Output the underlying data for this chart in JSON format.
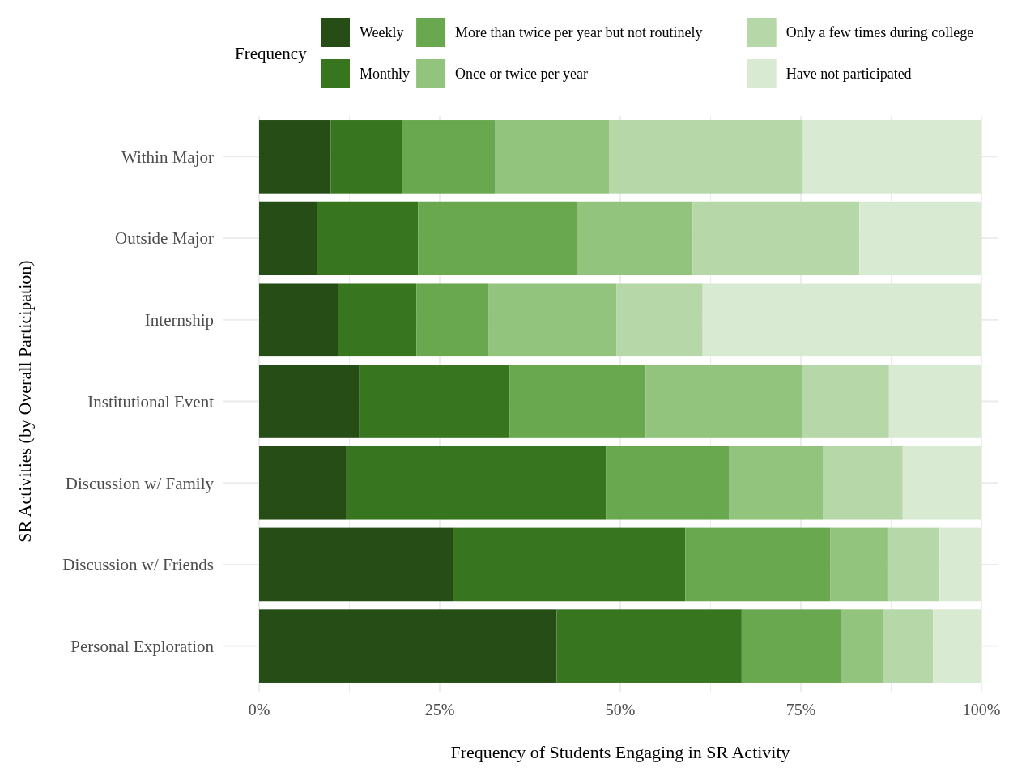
{
  "chart_data": {
    "type": "bar",
    "orientation": "horizontal",
    "stacked": true,
    "xlabel": "Frequency of Students Engaging in SR Activity",
    "ylabel": "SR Activities (by Overall Participation)",
    "legend_title": "Frequency",
    "legend": "top",
    "grid": true,
    "categories": [
      "Within Major",
      "Outside Major",
      "Internship",
      "Institutional Event",
      "Discussion w/ Family",
      "Discussion w/ Friends",
      "Personal Exploration"
    ],
    "xlim": [
      0,
      100
    ],
    "xticks": [
      {
        "value": 0,
        "label": "0%"
      },
      {
        "value": 12.5,
        "label": null
      },
      {
        "value": 25,
        "label": "25%"
      },
      {
        "value": 37.5,
        "label": null
      },
      {
        "value": 50,
        "label": "50%"
      },
      {
        "value": 62.5,
        "label": null
      },
      {
        "value": 75,
        "label": "75%"
      },
      {
        "value": 87.5,
        "label": null
      },
      {
        "value": 100,
        "label": "100%"
      }
    ],
    "series": [
      {
        "name": "Weekly",
        "color": "#264d16",
        "values": [
          9.9,
          8.0,
          10.9,
          13.8,
          12.0,
          26.9,
          41.2
        ]
      },
      {
        "name": "Monthly",
        "color": "#37751f",
        "values": [
          9.9,
          14.0,
          10.9,
          20.9,
          36.0,
          32.1,
          25.6
        ]
      },
      {
        "name": "More than twice per year but not routinely",
        "color": "#69a84f",
        "values": [
          12.9,
          22.0,
          10.0,
          18.8,
          17.1,
          20.1,
          13.7
        ]
      },
      {
        "name": "Once or twice per year",
        "color": "#93c47d",
        "values": [
          15.8,
          16.0,
          17.7,
          21.8,
          13.0,
          8.0,
          5.9
        ]
      },
      {
        "name": "Only a few times during college",
        "color": "#b6d7a8",
        "values": [
          26.8,
          23.1,
          11.9,
          11.9,
          11.0,
          7.1,
          6.9
        ]
      },
      {
        "name": "Have not participated",
        "color": "#d9ead3",
        "values": [
          24.7,
          16.9,
          38.6,
          12.8,
          10.9,
          5.8,
          6.7
        ]
      }
    ]
  }
}
